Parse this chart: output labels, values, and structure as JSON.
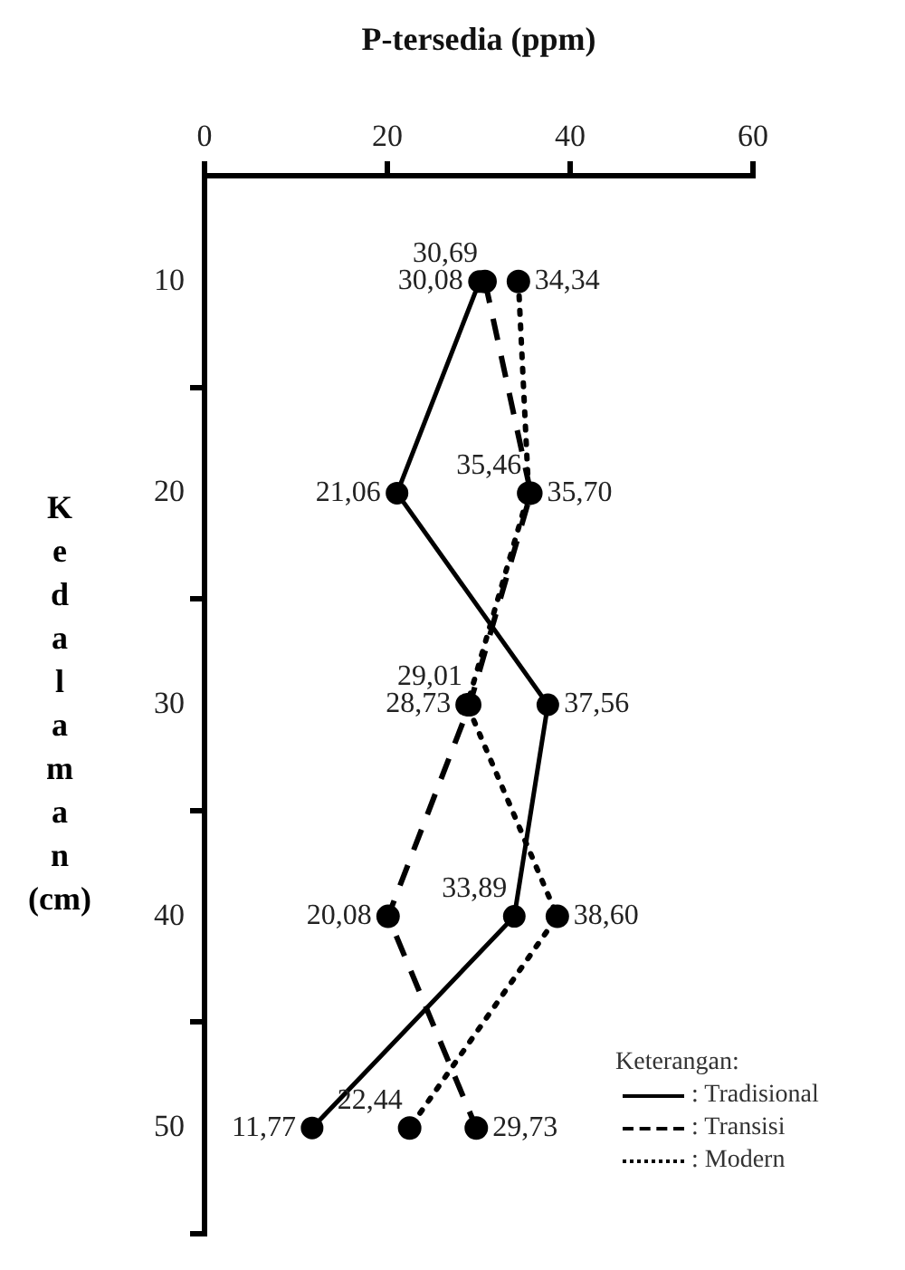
{
  "chart_data": {
    "type": "line",
    "orientation": "horizontal",
    "xlabel": "P-tersedia (ppm)",
    "ylabel": "Kedalaman (cm)",
    "legend_title": "Keterangan:",
    "categories": [
      "10",
      "20",
      "30",
      "40",
      "50"
    ],
    "xlim": [
      0,
      60
    ],
    "xticks": [
      0,
      20,
      40,
      60
    ],
    "grid": false,
    "legend": "bottom right",
    "marker": "circle",
    "series": [
      {
        "name": ": Tradisional",
        "color": "#000000",
        "line_style": "solid",
        "values": [
          30.08,
          21.06,
          37.56,
          33.89,
          11.77
        ],
        "value_labels": [
          "30,08",
          "21,06",
          "37,56",
          "33,89",
          "11,77"
        ]
      },
      {
        "name": ": Transisi",
        "color": "#000000",
        "line_style": "dashed",
        "values": [
          30.69,
          35.7,
          29.01,
          20.08,
          29.73
        ],
        "value_labels": [
          "30,69",
          "35,70",
          "29,01",
          "20,08",
          "29,73"
        ]
      },
      {
        "name": ": Modern",
        "color": "#000000",
        "line_style": "dotted",
        "values": [
          34.34,
          35.46,
          28.73,
          38.6,
          22.44
        ],
        "value_labels": [
          "34,34",
          "35,46",
          "28,73",
          "38,60",
          "22,44"
        ]
      }
    ]
  }
}
